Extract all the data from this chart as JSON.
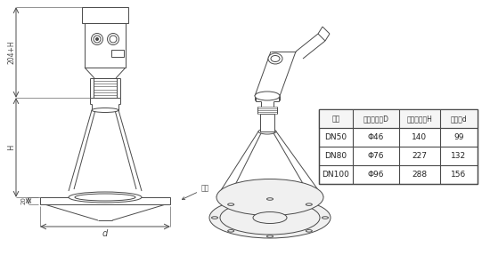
{
  "bg_color": "#ffffff",
  "line_color": "#4a4a4a",
  "table_header": [
    "法兰",
    "喇叭口直径D",
    "喇叭口高度H",
    "四氟盘d"
  ],
  "table_rows": [
    [
      "DN50",
      "Φ46",
      "140",
      "99"
    ],
    [
      "DN80",
      "Φ76",
      "227",
      "132"
    ],
    [
      "DN100",
      "Φ96",
      "288",
      "156"
    ]
  ],
  "dim_label_204H": "204+H",
  "dim_label_H": "H",
  "dim_label_20": "20",
  "dim_label_d": "d",
  "dim_label_flange": "法兰"
}
